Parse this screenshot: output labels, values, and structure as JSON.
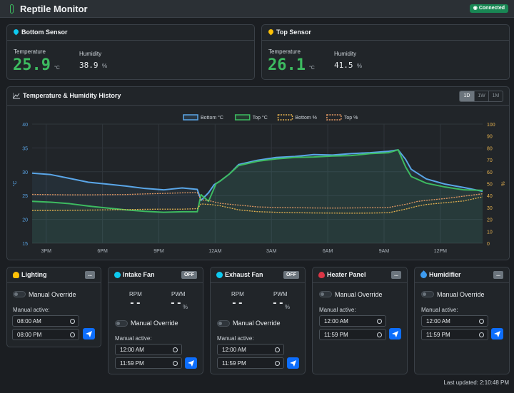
{
  "app": {
    "title": "Reptile Monitor",
    "connection": "Connected"
  },
  "sensors": [
    {
      "title": "Bottom Sensor",
      "temp_label": "Temperature",
      "temp": "25.9",
      "temp_unit": "°C",
      "hum_label": "Humidity",
      "hum": "38.9",
      "hum_unit": "%",
      "pin_color": "#0dcaf0"
    },
    {
      "title": "Top Sensor",
      "temp_label": "Temperature",
      "temp": "26.1",
      "temp_unit": "°C",
      "hum_label": "Humidity",
      "hum": "41.5",
      "hum_unit": "%",
      "pin_color": "#ffc107"
    }
  ],
  "history": {
    "title": "Temperature & Humidity History",
    "ranges": [
      "1D",
      "1W",
      "1M"
    ],
    "active_range": "1D"
  },
  "chart_data": {
    "type": "line",
    "legend": [
      "Bottom °C",
      "Top °C",
      "Bottom %",
      "Top %"
    ],
    "legend_position": "top",
    "grid": true,
    "x_ticks": [
      "3PM",
      "6PM",
      "9PM",
      "12AM",
      "3AM",
      "6AM",
      "9AM",
      "12PM"
    ],
    "y_left": {
      "label": "°C",
      "ticks": [
        15,
        20,
        25,
        30,
        35,
        40
      ],
      "range": [
        15,
        40
      ]
    },
    "y_right": {
      "label": "%",
      "ticks": [
        0,
        10,
        20,
        30,
        40,
        50,
        60,
        70,
        80,
        90,
        100
      ],
      "range": [
        0,
        100
      ]
    },
    "x_range": [
      0,
      24
    ],
    "series": [
      {
        "name": "Bottom °C",
        "axis": "left",
        "color": "#5aa6e8",
        "style": "solid",
        "points": [
          [
            0,
            29.7
          ],
          [
            1,
            29.4
          ],
          [
            2,
            28.6
          ],
          [
            3,
            27.8
          ],
          [
            4,
            27.4
          ],
          [
            5,
            27.0
          ],
          [
            6,
            26.5
          ],
          [
            7,
            26.2
          ],
          [
            8,
            26.6
          ],
          [
            8.8,
            26.3
          ],
          [
            9,
            24.0
          ],
          [
            9.4,
            25.6
          ],
          [
            9.7,
            27.3
          ],
          [
            10,
            28.0
          ],
          [
            10.5,
            29.5
          ],
          [
            11,
            31.5
          ],
          [
            12,
            32.4
          ],
          [
            13,
            33.0
          ],
          [
            14,
            33.2
          ],
          [
            15,
            33.6
          ],
          [
            16,
            33.5
          ],
          [
            17,
            33.8
          ],
          [
            18,
            34.0
          ],
          [
            19,
            34.3
          ],
          [
            19.5,
            34.6
          ],
          [
            19.9,
            32.6
          ],
          [
            20.2,
            30.5
          ],
          [
            21,
            28.5
          ],
          [
            22,
            27.4
          ],
          [
            23,
            26.7
          ],
          [
            24,
            25.9
          ]
        ]
      },
      {
        "name": "Top °C",
        "axis": "left",
        "color": "#3dbb60",
        "style": "solid",
        "points": [
          [
            0,
            23.8
          ],
          [
            1,
            23.6
          ],
          [
            2,
            23.3
          ],
          [
            3,
            22.8
          ],
          [
            4,
            22.4
          ],
          [
            5,
            22.0
          ],
          [
            6,
            21.7
          ],
          [
            7,
            21.5
          ],
          [
            8,
            21.6
          ],
          [
            8.8,
            21.6
          ],
          [
            9,
            25.2
          ],
          [
            9.4,
            23.8
          ],
          [
            9.8,
            27.5
          ],
          [
            10,
            28.0
          ],
          [
            10.5,
            29.5
          ],
          [
            11,
            31.3
          ],
          [
            12,
            32.2
          ],
          [
            13,
            32.7
          ],
          [
            14,
            33.0
          ],
          [
            15,
            33.1
          ],
          [
            16,
            33.3
          ],
          [
            17,
            33.4
          ],
          [
            18,
            33.8
          ],
          [
            19,
            34.0
          ],
          [
            19.5,
            34.6
          ],
          [
            19.9,
            31.0
          ],
          [
            20.2,
            29.0
          ],
          [
            21,
            27.6
          ],
          [
            22,
            26.8
          ],
          [
            23,
            26.2
          ],
          [
            24,
            26.1
          ]
        ]
      },
      {
        "name": "Bottom %",
        "axis": "right",
        "color": "#e6b24f",
        "style": "dashed",
        "points": [
          [
            0,
            27.5
          ],
          [
            1,
            27.5
          ],
          [
            2,
            27.6
          ],
          [
            3,
            27.8
          ],
          [
            4,
            28.0
          ],
          [
            5,
            28.2
          ],
          [
            6,
            28.5
          ],
          [
            7,
            28.6
          ],
          [
            8,
            28.6
          ],
          [
            8.8,
            29.0
          ],
          [
            9,
            33.0
          ],
          [
            9.5,
            32.5
          ],
          [
            10,
            31.5
          ],
          [
            11,
            28.0
          ],
          [
            12,
            26.5
          ],
          [
            13,
            26.0
          ],
          [
            14,
            25.6
          ],
          [
            15,
            25.4
          ],
          [
            16,
            25.3
          ],
          [
            17,
            25.2
          ],
          [
            18,
            25.3
          ],
          [
            19,
            25.6
          ],
          [
            20,
            29.0
          ],
          [
            20.5,
            31.0
          ],
          [
            21,
            32.5
          ],
          [
            22,
            34.0
          ],
          [
            23,
            35.5
          ],
          [
            24,
            38.9
          ]
        ]
      },
      {
        "name": "Top %",
        "axis": "right",
        "color": "#e59a64",
        "style": "dashed",
        "points": [
          [
            0,
            41.0
          ],
          [
            1,
            40.8
          ],
          [
            2,
            40.6
          ],
          [
            3,
            40.6
          ],
          [
            4,
            40.8
          ],
          [
            5,
            40.9
          ],
          [
            6,
            41.4
          ],
          [
            7,
            41.8
          ],
          [
            8,
            42.3
          ],
          [
            8.8,
            42.5
          ],
          [
            9,
            36.5
          ],
          [
            9.5,
            35.5
          ],
          [
            10,
            33.5
          ],
          [
            11,
            32.0
          ],
          [
            12,
            30.5
          ],
          [
            13,
            30.0
          ],
          [
            14,
            29.8
          ],
          [
            15,
            29.6
          ],
          [
            16,
            29.5
          ],
          [
            17,
            29.6
          ],
          [
            18,
            29.8
          ],
          [
            19,
            30.0
          ],
          [
            20,
            33.0
          ],
          [
            20.5,
            35.0
          ],
          [
            21,
            36.0
          ],
          [
            22,
            37.5
          ],
          [
            23,
            39.5
          ],
          [
            24,
            41.5
          ]
        ]
      }
    ]
  },
  "devices": [
    {
      "name": "Lighting",
      "icon": "bulb-icon",
      "icon_color": "#ffc107",
      "badge": "...",
      "type": "light",
      "override_label": "Manual Override",
      "active_label": "Manual active:",
      "start": "08:00 AM",
      "end": "08:00 PM"
    },
    {
      "name": "Intake Fan",
      "icon": "fan-icon",
      "icon_color": "#0dcaf0",
      "badge": "OFF",
      "type": "fan",
      "rpm_label": "RPM",
      "pwm_label": "PWM",
      "rpm": "--",
      "pwm": "--",
      "pwm_unit": "%",
      "override_label": "Manual Override",
      "active_label": "Manual active:",
      "start": "12:00 AM",
      "end": "11:59 PM"
    },
    {
      "name": "Exhaust Fan",
      "icon": "fan-icon",
      "icon_color": "#0dcaf0",
      "badge": "OFF",
      "type": "fan",
      "rpm_label": "RPM",
      "pwm_label": "PWM",
      "rpm": "--",
      "pwm": "--",
      "pwm_unit": "%",
      "override_label": "Manual Override",
      "active_label": "Manual active:",
      "start": "12:00 AM",
      "end": "11:59 PM"
    },
    {
      "name": "Heater Panel",
      "icon": "flame-icon",
      "icon_color": "#dc3545",
      "badge": "...",
      "type": "light",
      "override_label": "Manual Override",
      "active_label": "Manual active:",
      "start": "12:00 AM",
      "end": "11:59 PM"
    },
    {
      "name": "Humidifier",
      "icon": "droplet-icon",
      "icon_color": "#3d9bf0",
      "badge": "...",
      "type": "light",
      "override_label": "Manual Override",
      "active_label": "Manual active:",
      "start": "12:00 AM",
      "end": "11:59 PM"
    }
  ],
  "footer": {
    "last_updated": "Last updated: 2:10:48 PM"
  }
}
